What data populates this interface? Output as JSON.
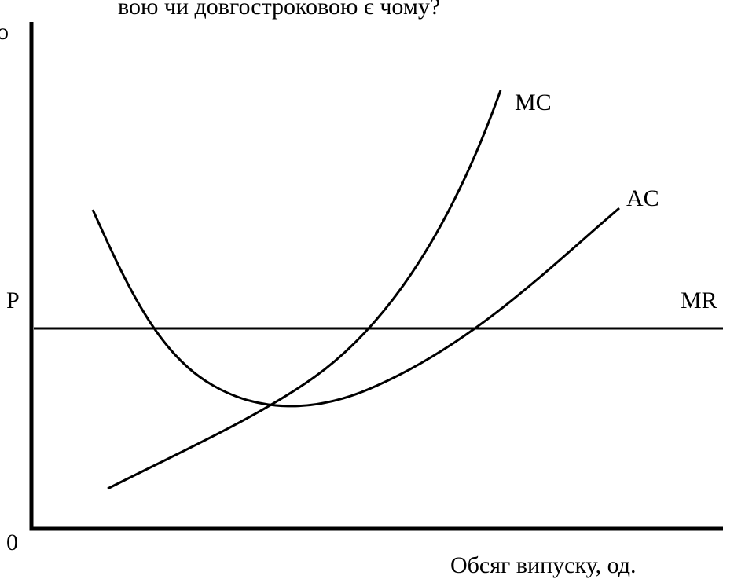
{
  "header": {
    "text": "вою  чи довгостроковою є чому?"
  },
  "axes": {
    "y_label": "о",
    "origin": "0",
    "x_label": "Обсяг випуску, од."
  },
  "curves": {
    "mc": "MC",
    "ac": "AC",
    "mr": "MR",
    "price": "P"
  }
}
